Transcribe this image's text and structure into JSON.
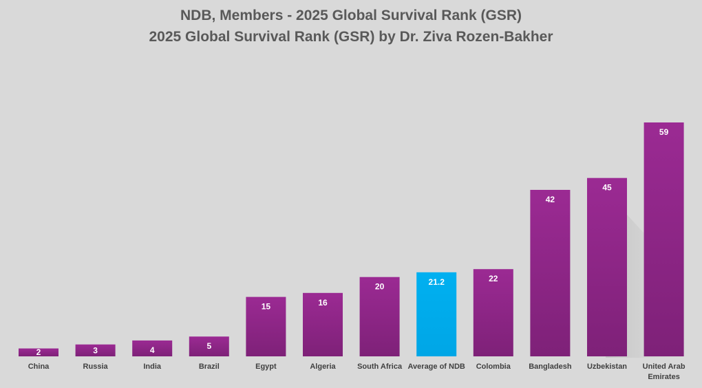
{
  "chart_data": {
    "type": "bar",
    "title": "NDB, Members - 2025 Global Survival Rank (GSR)",
    "subtitle": "2025 Global Survival Rank (GSR) by Dr. Ziva Rozen-Bakher",
    "categories": [
      "China",
      "Russia",
      "India",
      "Brazil",
      "Egypt",
      "Algeria",
      "South Africa",
      "Average of NDB",
      "Colombia",
      "Bangladesh",
      "Uzbekistan",
      "United Arab Emirates"
    ],
    "values": [
      2,
      3,
      4,
      5,
      15,
      16,
      20,
      21.2,
      22,
      42,
      45,
      59
    ],
    "value_labels": [
      "2",
      "3",
      "4",
      "5",
      "15",
      "16",
      "20",
      "21.2",
      "22",
      "42",
      "45",
      "59"
    ],
    "ylim": [
      0,
      59
    ],
    "grid": false,
    "legend": "none",
    "colors": {
      "bar": "#9b2a93",
      "bar_highlight": "#00b0f0",
      "background": "#d9d9d9",
      "title": "#595959"
    },
    "highlight_category": "Average of NDB"
  }
}
